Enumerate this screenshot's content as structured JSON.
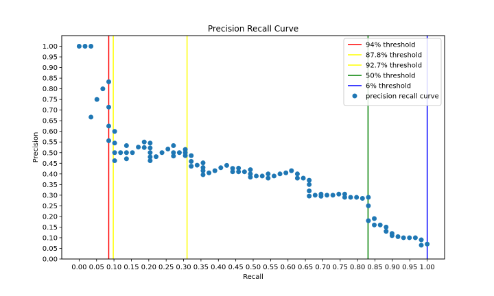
{
  "chart_data": {
    "type": "scatter",
    "title": "Precision Recall Curve",
    "xlabel": "Recall",
    "ylabel": "Precision",
    "xlim": [
      -0.05,
      1.05
    ],
    "ylim": [
      0.0,
      1.05
    ],
    "grid": false,
    "legend_position": "top-right",
    "xticks": [
      "0.00",
      "0.05",
      "0.10",
      "0.15",
      "0.20",
      "0.25",
      "0.30",
      "0.35",
      "0.40",
      "0.45",
      "0.50",
      "0.55",
      "0.60",
      "0.65",
      "0.70",
      "0.75",
      "0.80",
      "0.85",
      "0.90",
      "0.95",
      "1.00"
    ],
    "yticks": [
      "0.00",
      "0.05",
      "0.10",
      "0.15",
      "0.20",
      "0.25",
      "0.30",
      "0.35",
      "0.40",
      "0.45",
      "0.50",
      "0.55",
      "0.60",
      "0.65",
      "0.70",
      "0.75",
      "0.80",
      "0.85",
      "0.90",
      "0.95",
      "1.00"
    ],
    "vlines": [
      {
        "label": "94% threshold",
        "x": 0.085,
        "color": "#ff0000"
      },
      {
        "label": "87.8% threshold",
        "x": 0.098,
        "color": "#ffff00"
      },
      {
        "label": "92.7% threshold",
        "x": 0.31,
        "color": "#ffff00"
      },
      {
        "label": "50% threshold",
        "x": 0.83,
        "color": "#008000"
      },
      {
        "label": "6% threshold",
        "x": 1.0,
        "color": "#0000ff"
      }
    ],
    "series": [
      {
        "name": "precision recall curve",
        "color": "#1f77b4",
        "x": [
          0.0,
          0.017,
          0.034,
          0.034,
          0.051,
          0.068,
          0.085,
          0.085,
          0.085,
          0.085,
          0.102,
          0.102,
          0.102,
          0.102,
          0.119,
          0.136,
          0.136,
          0.136,
          0.153,
          0.17,
          0.187,
          0.187,
          0.204,
          0.204,
          0.204,
          0.204,
          0.204,
          0.221,
          0.238,
          0.255,
          0.271,
          0.271,
          0.271,
          0.288,
          0.305,
          0.305,
          0.305,
          0.322,
          0.322,
          0.322,
          0.339,
          0.356,
          0.356,
          0.356,
          0.356,
          0.373,
          0.39,
          0.407,
          0.424,
          0.441,
          0.441,
          0.458,
          0.458,
          0.475,
          0.492,
          0.492,
          0.492,
          0.509,
          0.526,
          0.543,
          0.543,
          0.56,
          0.577,
          0.594,
          0.61,
          0.627,
          0.627,
          0.644,
          0.661,
          0.661,
          0.661,
          0.661,
          0.678,
          0.695,
          0.695,
          0.712,
          0.729,
          0.746,
          0.763,
          0.763,
          0.78,
          0.797,
          0.814,
          0.831,
          0.831,
          0.831,
          0.848,
          0.848,
          0.865,
          0.882,
          0.882,
          0.899,
          0.899,
          0.916,
          0.932,
          0.949,
          0.966,
          0.983,
          0.983,
          1.0
        ],
        "y": [
          1.0,
          1.0,
          1.0,
          0.667,
          0.75,
          0.8,
          0.833,
          0.714,
          0.625,
          0.556,
          0.6,
          0.545,
          0.5,
          0.462,
          0.5,
          0.533,
          0.5,
          0.471,
          0.5,
          0.526,
          0.55,
          0.524,
          0.545,
          0.522,
          0.5,
          0.48,
          0.462,
          0.481,
          0.5,
          0.517,
          0.533,
          0.5,
          0.484,
          0.5,
          0.515,
          0.5,
          0.486,
          0.486,
          0.459,
          0.436,
          0.441,
          0.452,
          0.43,
          0.415,
          0.396,
          0.405,
          0.415,
          0.429,
          0.44,
          0.426,
          0.41,
          0.427,
          0.41,
          0.41,
          0.42,
          0.4,
          0.385,
          0.39,
          0.39,
          0.4,
          0.38,
          0.39,
          0.4,
          0.405,
          0.415,
          0.4,
          0.38,
          0.38,
          0.37,
          0.35,
          0.32,
          0.296,
          0.3,
          0.305,
          0.295,
          0.3,
          0.3,
          0.305,
          0.305,
          0.29,
          0.29,
          0.29,
          0.285,
          0.29,
          0.25,
          0.18,
          0.19,
          0.16,
          0.16,
          0.15,
          0.13,
          0.12,
          0.11,
          0.105,
          0.1,
          0.1,
          0.1,
          0.09,
          0.065,
          0.07
        ]
      }
    ]
  }
}
